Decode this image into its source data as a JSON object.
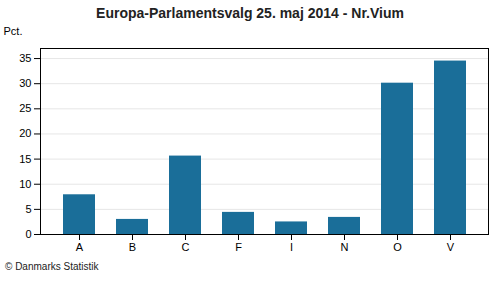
{
  "chart_data": {
    "type": "bar",
    "title": "Europa-Parlamentsvalg 25. maj 2014 - Nr.Vium",
    "categories": [
      "A",
      "B",
      "C",
      "F",
      "I",
      "N",
      "O",
      "V"
    ],
    "values": [
      7.9,
      3.0,
      15.6,
      4.4,
      2.5,
      3.4,
      30.1,
      34.5
    ],
    "color": "#1a6e99",
    "ylabel": "Pct.",
    "ylim": [
      0,
      37
    ],
    "yticks": [
      0,
      5,
      10,
      15,
      20,
      25,
      30,
      35
    ],
    "grid": true,
    "annotations": [
      "© Danmarks Statistik"
    ]
  }
}
